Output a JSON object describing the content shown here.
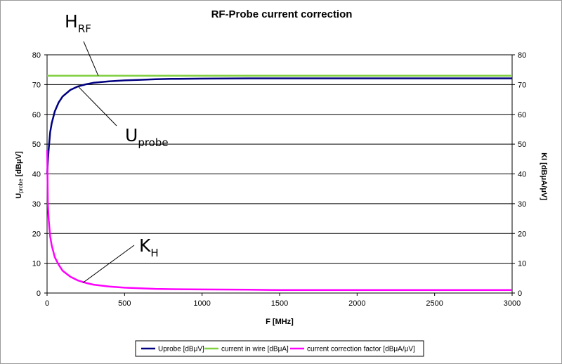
{
  "chart_data": {
    "type": "line",
    "title": "RF-Probe current correction",
    "xlabel": "F [MHz]",
    "ylabel_left": {
      "main": "U",
      "sub": "probe",
      "rest": " [dBμV]"
    },
    "ylabel_right": "KI [dBμA/μV]",
    "xlim": [
      0,
      3000
    ],
    "ylim": [
      0,
      80
    ],
    "y2lim": [
      0,
      80
    ],
    "x_ticks": [
      "0",
      "500",
      "1000",
      "1500",
      "2000",
      "2500",
      "3000"
    ],
    "y_ticks": [
      "0",
      "10",
      "20",
      "30",
      "40",
      "50",
      "60",
      "70",
      "80"
    ],
    "y2_ticks": [
      "0",
      "10",
      "20",
      "30",
      "40",
      "50",
      "60",
      "70",
      "80"
    ],
    "grid": "horizontal",
    "legend_position": "bottom",
    "series": [
      {
        "name": "Uprobe [dBμV]",
        "color": "#000080",
        "x": [
          1,
          5,
          10,
          20,
          30,
          50,
          75,
          100,
          150,
          200,
          250,
          300,
          400,
          500,
          600,
          700,
          800,
          1000,
          1300,
          1500,
          2000,
          2500,
          3000
        ],
        "y": [
          40,
          44,
          48,
          54,
          57,
          61,
          64,
          66,
          68.2,
          69.4,
          70.1,
          70.6,
          71.1,
          71.4,
          71.6,
          71.8,
          71.9,
          72.0,
          72.1,
          72.1,
          72.1,
          72.1,
          72.1
        ]
      },
      {
        "name": "current in wire [dBμA]",
        "color": "#80d040",
        "x": [
          0,
          3000
        ],
        "y": [
          73,
          73
        ]
      },
      {
        "name": "current correction factor [dBμA/μV]",
        "color": "#ff00ff",
        "x": [
          1,
          5,
          10,
          20,
          30,
          50,
          75,
          100,
          150,
          200,
          250,
          300,
          400,
          500,
          600,
          700,
          800,
          1000,
          1300,
          1500,
          2000,
          2500,
          3000
        ],
        "y": [
          48,
          30,
          25,
          19,
          16,
          12,
          9.5,
          7.5,
          5.5,
          4.2,
          3.4,
          2.8,
          2.2,
          1.8,
          1.6,
          1.4,
          1.3,
          1.2,
          1.1,
          1.0,
          1.0,
          1.0,
          1.0
        ]
      }
    ],
    "annotations": [
      {
        "main": "H",
        "sub": "RF",
        "series": 1,
        "x": 330,
        "y": 73
      },
      {
        "main": "U",
        "sub": "probe",
        "series": 0,
        "x": 200,
        "y": 69.4
      },
      {
        "main": "K",
        "sub": "H",
        "series": 2,
        "x": 230,
        "y": 3.4
      }
    ]
  }
}
